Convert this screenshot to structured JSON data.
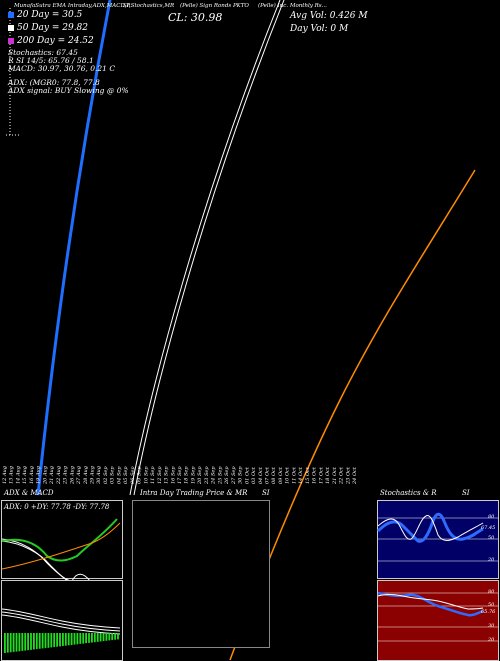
{
  "header": {
    "line1": "MunafaSutra  EMA Intraday,ADX,MACD,R",
    "line1b": "SI,Stochastics,MR",
    "line1c": "(Pelle) Sign Ronds PKTO",
    "line1d": "(Pelle) Inc. Monthly Rs...",
    "cl_label": "CL: 30.98",
    "avg_vol": "Avg Vol: 0.426  M",
    "day_vol": "Day Vol: 0   M"
  },
  "legend": {
    "ema20": "20  Day = 30.5",
    "ema50": "50  Day = 29.82",
    "ema200": "200  Day = 24.52",
    "ema20_color": "#1e6fff",
    "ema50_color": "#ffffff",
    "ema200_color": "#cc33cc"
  },
  "indicators": {
    "stochastics": "Stochastics: 67.45",
    "rsi": "R                SI 14/5: 65.76  / 58.1",
    "macd": "MACD: 30.97,  30.76,  0.21 C",
    "adx": "ADX:                          (MGR0: 77.8,  77.8",
    "adx_signal": "ADX  signal:                        BUY Slowing @ 0%"
  },
  "dates": [
    "12 Aug",
    "13 Aug",
    "14 Aug",
    "15 Aug",
    "16 Aug",
    "19 Aug",
    "20 Aug",
    "21 Aug",
    "22 Aug",
    "23 Aug",
    "26 Aug",
    "27 Aug",
    "28 Aug",
    "29 Aug",
    "30 Aug",
    "02 Sep",
    "03 Sep",
    "04 Sep",
    "05 Sep",
    "06 Sep",
    "09 Sep",
    "10 Sep",
    "11 Sep",
    "12 Sep",
    "13 Sep",
    "16 Sep",
    "17 Sep",
    "18 Sep",
    "19 Sep",
    "20 Sep",
    "23 Sep",
    "24 Sep",
    "25 Sep",
    "26 Sep",
    "27 Sep",
    "30 Sep",
    "01 Oct",
    "03 Oct",
    "04 Oct",
    "07 Oct",
    "08 Oct",
    "09 Oct",
    "10 Oct",
    "11 Oct",
    "14 Oct",
    "15 Oct",
    "16 Oct",
    "17 Oct",
    "18 Oct",
    "21 Oct",
    "22 Oct",
    "23 Oct",
    "24 Oct"
  ],
  "panels": {
    "adx_title": "ADX  & MACD",
    "adx_values": "ADX: 0  +DY: 77.78  -DY: 77.78",
    "intraday_title": "Intra  Day Trading Price  & MR",
    "intraday_si": "SI",
    "stoch_title": "Stochastics & R",
    "stoch_si": "SI",
    "stoch_levels": [
      "80",
      "50",
      "20"
    ],
    "rsi_levels": [
      "80",
      "50",
      "30",
      "20"
    ],
    "stoch_value": "67.45",
    "rsi_value": "65.76",
    "stoch_bg": "#000066",
    "rsi_bg": "#8b0000"
  },
  "chart_data": {
    "type": "line",
    "title": "",
    "series": [
      {
        "name": "20  Day = 30.5",
        "color": "#1e6fff"
      },
      {
        "name": "50  Day = 29.82",
        "color": "#ffffff"
      },
      {
        "name": "200  Day = 24.52",
        "color": "#cc33cc"
      }
    ],
    "price_color": "#ff8c00",
    "last_close": 30.98
  }
}
